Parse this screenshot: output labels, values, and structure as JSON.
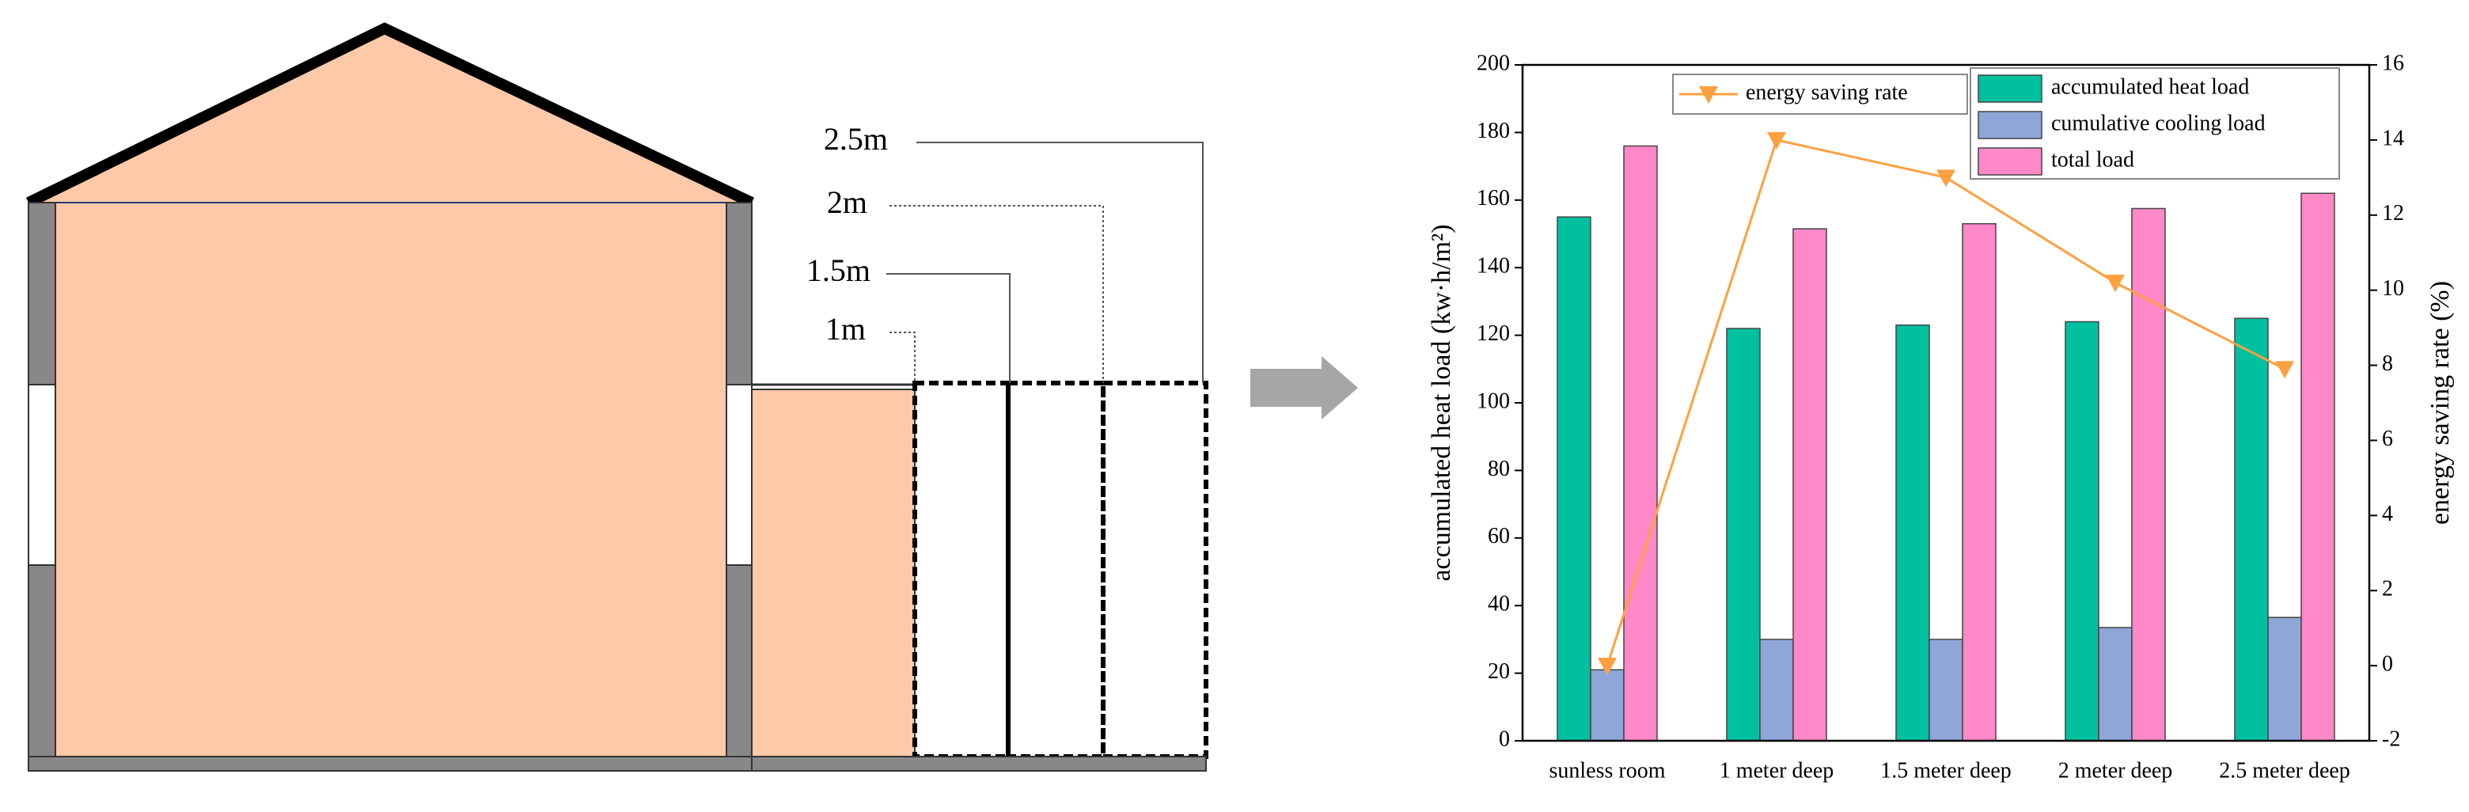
{
  "diagram": {
    "depth_labels": [
      "2.5m",
      "2m",
      "1.5m",
      "1m"
    ]
  },
  "chart_data": {
    "type": "bar",
    "categories": [
      "sunless room",
      "1 meter deep",
      "1.5 meter deep",
      "2 meter deep",
      "2.5 meter deep"
    ],
    "series": [
      {
        "name": "accumulated heat load",
        "color": "#00c0a0",
        "values": [
          155,
          122,
          123,
          124,
          125
        ]
      },
      {
        "name": "cumulative cooling load",
        "color": "#8ea6d8",
        "values": [
          21,
          30,
          30,
          33.5,
          36.5
        ]
      },
      {
        "name": "total load",
        "color": "#ff88c8",
        "values": [
          176,
          151.5,
          153,
          157.5,
          162
        ]
      },
      {
        "name": "energy saving rate",
        "color": "#ffa040",
        "type": "line",
        "axis": "y2",
        "values": [
          0,
          14,
          13,
          10.2,
          7.9
        ]
      }
    ],
    "ylabel": "accumulated heat load (kw·h/m²)",
    "y2label": "energy saving rate (%)",
    "ylim": [
      0,
      200
    ],
    "yticks": [
      0,
      20,
      40,
      60,
      80,
      100,
      120,
      140,
      160,
      180,
      200
    ],
    "y2lim": [
      -2,
      16
    ],
    "y2ticks": [
      -2,
      0,
      2,
      4,
      6,
      8,
      10,
      12,
      14,
      16
    ]
  }
}
